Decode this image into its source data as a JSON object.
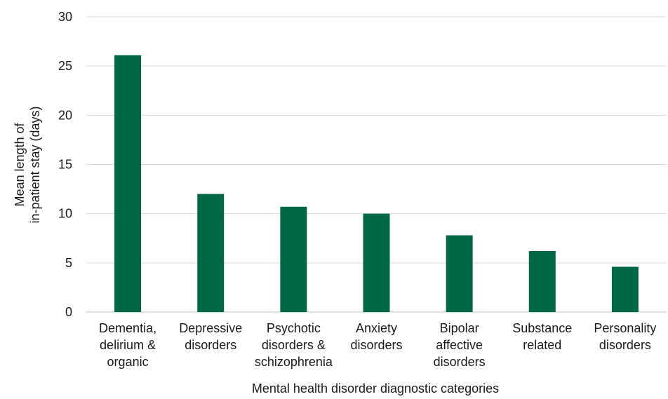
{
  "chart_data": {
    "type": "bar",
    "categories": [
      [
        "Dementia,",
        "delirium &",
        "organic"
      ],
      [
        "Depressive",
        "disorders"
      ],
      [
        "Psychotic",
        "disorders &",
        "schizophrenia"
      ],
      [
        "Anxiety",
        "disorders"
      ],
      [
        "Bipolar",
        "affective",
        "disorders"
      ],
      [
        "Substance",
        "related"
      ],
      [
        "Personality",
        "disorders"
      ]
    ],
    "values": [
      26.1,
      12.0,
      10.7,
      10.0,
      7.8,
      6.2,
      4.6
    ],
    "ylim": [
      0,
      30
    ],
    "yticks": [
      0,
      5,
      10,
      15,
      20,
      25,
      30
    ],
    "ylabel_lines": [
      "Mean length of",
      "in-patient stay (days)"
    ],
    "xlabel": "Mental health disorder  diagnostic categories",
    "grid": true,
    "bar_color": "#006747",
    "grid_color": "#d9d9d9"
  }
}
